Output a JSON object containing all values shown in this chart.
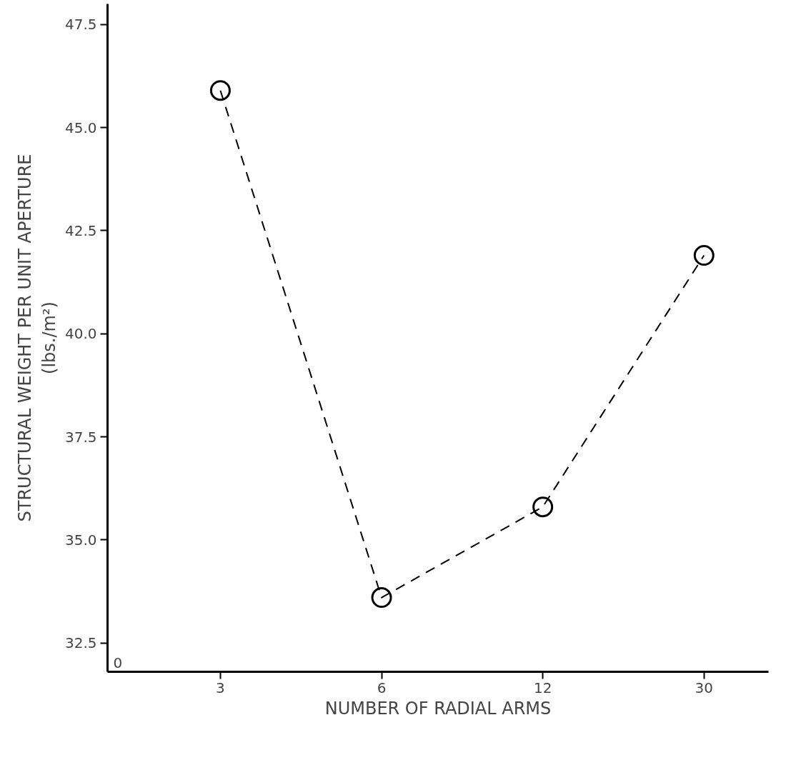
{
  "chart_data": {
    "type": "line",
    "xlabel": "NUMBER OF RADIAL ARMS",
    "ylabel": "STRUCTURAL WEIGHT PER UNIT APERTURE\n(lbs./m²)",
    "categories": [
      "3",
      "6",
      "12",
      "30"
    ],
    "series": [
      {
        "color": "#000000",
        "values": [
          45.9,
          33.6,
          35.8,
          41.9
        ]
      }
    ],
    "ylim": [
      31.8,
      48.0
    ],
    "yticks": [
      {
        "value": 32.5,
        "label": "32.5"
      },
      {
        "value": 35,
        "label": "35.0"
      },
      {
        "value": 37.5,
        "label": "37.5"
      },
      {
        "value": 40,
        "label": "40.0"
      },
      {
        "value": 42.5,
        "label": "42.5"
      },
      {
        "value": 45,
        "label": "45.0"
      },
      {
        "value": 47.5,
        "label": "47.5"
      }
    ],
    "annotations": [
      "0"
    ],
    "marker": "circle",
    "line_style": "dashed",
    "grid": false
  }
}
